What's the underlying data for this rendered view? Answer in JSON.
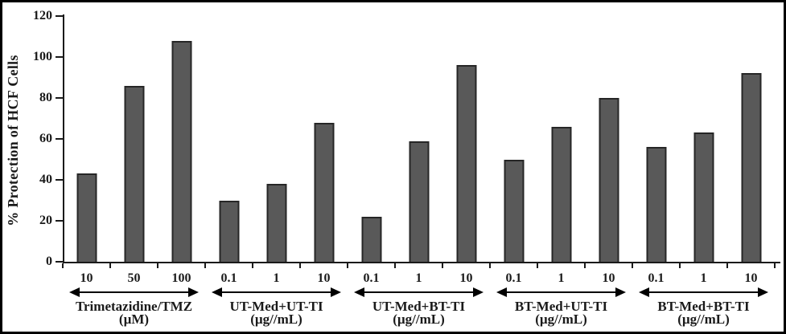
{
  "chart_data": {
    "type": "bar",
    "title": "",
    "xlabel": "",
    "ylabel": "% Protection of HCF Cells",
    "ylim": [
      0,
      120
    ],
    "yticks": [
      0,
      20,
      40,
      60,
      80,
      100,
      120
    ],
    "grid": false,
    "legend": null,
    "bar_color": "#595959",
    "bar_border_color": "#262626",
    "axis_color": "#1a1a1a",
    "frame_color": "#000000",
    "background_color": "#ffffff",
    "groups": [
      {
        "name": "Trimetazidine/TMZ",
        "unit": "(µM)",
        "categories": [
          "10",
          "50",
          "100"
        ],
        "values": [
          43,
          86,
          108
        ]
      },
      {
        "name": "UT-Med+UT-TI",
        "unit": "(µg//mL)",
        "categories": [
          "0.1",
          "1",
          "10"
        ],
        "values": [
          30,
          38,
          68
        ]
      },
      {
        "name": "UT-Med+BT-TI",
        "unit": "(µg//mL)",
        "categories": [
          "0.1",
          "1",
          "10"
        ],
        "values": [
          22,
          59,
          96
        ]
      },
      {
        "name": "BT-Med+UT-TI",
        "unit": "(µg//mL)",
        "categories": [
          "0.1",
          "1",
          "10"
        ],
        "values": [
          50,
          66,
          80
        ]
      },
      {
        "name": "BT-Med+BT-TI",
        "unit": "(µg//mL)",
        "categories": [
          "0.1",
          "1",
          "10"
        ],
        "values": [
          56,
          63,
          92
        ]
      }
    ]
  }
}
